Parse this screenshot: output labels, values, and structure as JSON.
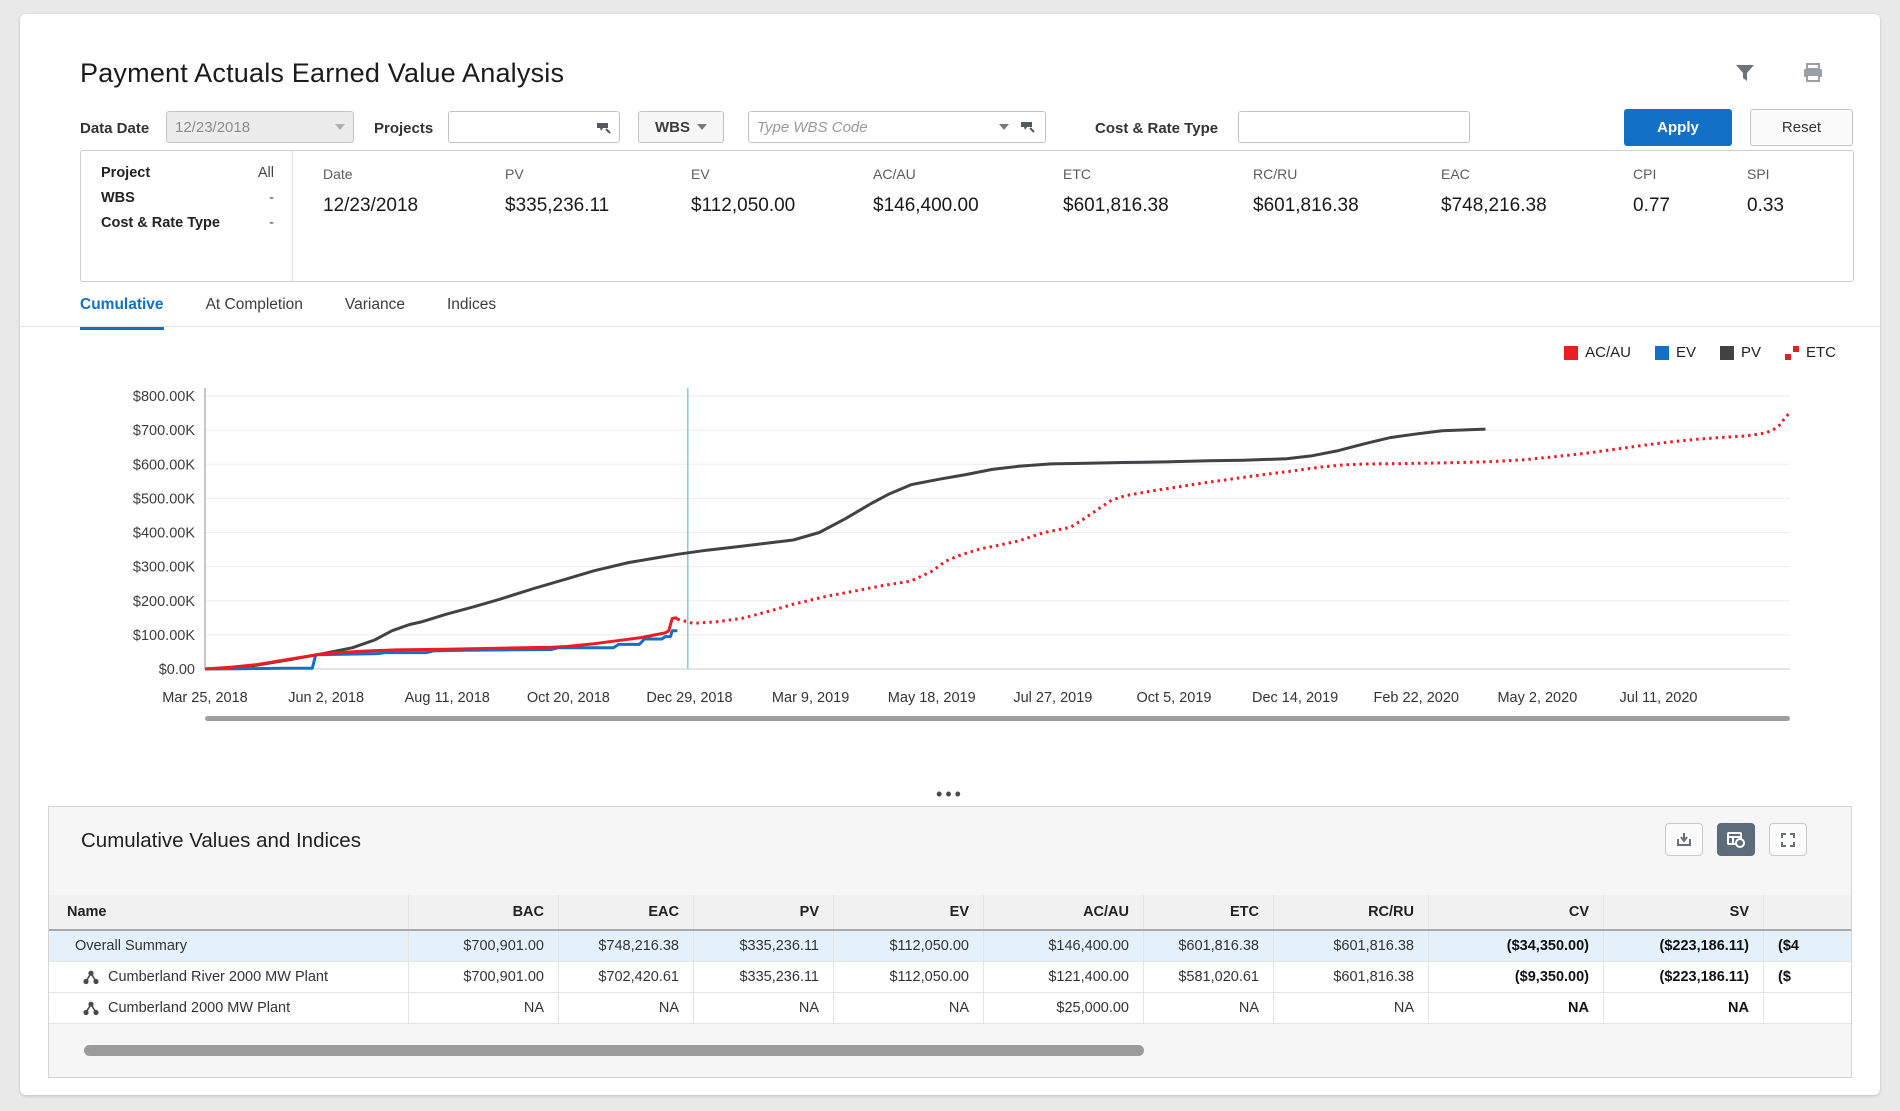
{
  "page": {
    "title": "Payment Actuals Earned Value Analysis"
  },
  "header_icons": {
    "filter": "filter-funnel",
    "print": "printer"
  },
  "filters": {
    "data_date": {
      "label": "Data Date",
      "value": "12/23/2018"
    },
    "projects": {
      "label": "Projects",
      "value": ""
    },
    "wbs": {
      "button_label": "WBS",
      "placeholder": "Type WBS Code"
    },
    "cost_rate_type": {
      "label": "Cost & Rate Type",
      "value": ""
    },
    "apply_label": "Apply",
    "reset_label": "Reset"
  },
  "summary": {
    "left": [
      {
        "label": "Project",
        "value": "All"
      },
      {
        "label": "WBS",
        "value": "-"
      },
      {
        "label": "Cost & Rate Type",
        "value": "-"
      }
    ],
    "metrics": [
      {
        "label": "Date",
        "value": "12/23/2018"
      },
      {
        "label": "PV",
        "value": "$335,236.11"
      },
      {
        "label": "EV",
        "value": "$112,050.00"
      },
      {
        "label": "AC/AU",
        "value": "$146,400.00"
      },
      {
        "label": "ETC",
        "value": "$601,816.38"
      },
      {
        "label": "RC/RU",
        "value": "$601,816.38"
      },
      {
        "label": "EAC",
        "value": "$748,216.38"
      },
      {
        "label": "CPI",
        "value": "0.77"
      },
      {
        "label": "SPI",
        "value": "0.33"
      }
    ]
  },
  "tabs": [
    {
      "label": "Cumulative",
      "active": true
    },
    {
      "label": "At Completion",
      "active": false
    },
    {
      "label": "Variance",
      "active": false
    },
    {
      "label": "Indices",
      "active": false
    }
  ],
  "legend": [
    {
      "label": "AC/AU",
      "color": "#ed1c24",
      "style": "solid"
    },
    {
      "label": "EV",
      "color": "#1271c4",
      "style": "solid"
    },
    {
      "label": "PV",
      "color": "#424245",
      "style": "solid"
    },
    {
      "label": "ETC",
      "color": "#ed1c24",
      "style": "dotted"
    }
  ],
  "chart_data": {
    "type": "line",
    "title": "",
    "xlabel": "",
    "ylabel": "",
    "units": "USD thousands",
    "x_unit": "days since Mar 25, 2018",
    "x_range": [
      0,
      916
    ],
    "ylim": [
      0,
      800
    ],
    "grid": true,
    "legend_position": "top-right",
    "y_ticks": [
      "$800.00K",
      "$700.00K",
      "$600.00K",
      "$500.00K",
      "$400.00K",
      "$300.00K",
      "$200.00K",
      "$100.00K",
      "$0.00"
    ],
    "y_tick_values": [
      800,
      700,
      600,
      500,
      400,
      300,
      200,
      100,
      0
    ],
    "x_labels": [
      {
        "label": "Mar 25, 2018",
        "day": 0
      },
      {
        "label": "Jun 2, 2018",
        "day": 70
      },
      {
        "label": "Aug 11, 2018",
        "day": 140
      },
      {
        "label": "Oct 20, 2018",
        "day": 210
      },
      {
        "label": "Dec 29, 2018",
        "day": 280
      },
      {
        "label": "Mar 9, 2019",
        "day": 350
      },
      {
        "label": "May 18, 2019",
        "day": 420
      },
      {
        "label": "Jul 27, 2019",
        "day": 490
      },
      {
        "label": "Oct 5, 2019",
        "day": 560
      },
      {
        "label": "Dec 14, 2019",
        "day": 630
      },
      {
        "label": "Feb 22, 2020",
        "day": 700
      },
      {
        "label": "May 2, 2020",
        "day": 770
      },
      {
        "label": "Jul 11, 2020",
        "day": 840
      }
    ],
    "data_date_line": {
      "day": 279,
      "color": "#8cc9e4"
    },
    "series": [
      {
        "name": "PV",
        "color": "#424245",
        "style": "solid",
        "points": [
          [
            0,
            0
          ],
          [
            14,
            4
          ],
          [
            30,
            11
          ],
          [
            50,
            28
          ],
          [
            69,
            46
          ],
          [
            85,
            62
          ],
          [
            98,
            85
          ],
          [
            108,
            112
          ],
          [
            118,
            130
          ],
          [
            125,
            138
          ],
          [
            139,
            160
          ],
          [
            155,
            182
          ],
          [
            170,
            204
          ],
          [
            190,
            236
          ],
          [
            209,
            264
          ],
          [
            225,
            288
          ],
          [
            245,
            312
          ],
          [
            260,
            325
          ],
          [
            273,
            336
          ],
          [
            290,
            348
          ],
          [
            310,
            360
          ],
          [
            340,
            378
          ],
          [
            355,
            400
          ],
          [
            370,
            440
          ],
          [
            385,
            485
          ],
          [
            395,
            512
          ],
          [
            408,
            540
          ],
          [
            424,
            556
          ],
          [
            440,
            570
          ],
          [
            455,
            585
          ],
          [
            470,
            594
          ],
          [
            489,
            601
          ],
          [
            510,
            603
          ],
          [
            530,
            605
          ],
          [
            555,
            607
          ],
          [
            580,
            610
          ],
          [
            600,
            612
          ],
          [
            625,
            616
          ],
          [
            640,
            625
          ],
          [
            655,
            640
          ],
          [
            670,
            660
          ],
          [
            685,
            678
          ],
          [
            699,
            688
          ],
          [
            715,
            698
          ],
          [
            740,
            703
          ]
        ]
      },
      {
        "name": "EV",
        "color": "#1271c4",
        "style": "solid",
        "points": [
          [
            0,
            0
          ],
          [
            20,
            1
          ],
          [
            45,
            2
          ],
          [
            62,
            2
          ],
          [
            64,
            42
          ],
          [
            80,
            43
          ],
          [
            100,
            45
          ],
          [
            104,
            48
          ],
          [
            128,
            48
          ],
          [
            132,
            53
          ],
          [
            150,
            55
          ],
          [
            200,
            57
          ],
          [
            204,
            62
          ],
          [
            236,
            62
          ],
          [
            239,
            72
          ],
          [
            251,
            72
          ],
          [
            254,
            88
          ],
          [
            264,
            88
          ],
          [
            266,
            95
          ],
          [
            269,
            95
          ],
          [
            270,
            112
          ],
          [
            273,
            112
          ]
        ]
      },
      {
        "name": "AC/AU",
        "color": "#ed1c24",
        "style": "solid",
        "points": [
          [
            0,
            0
          ],
          [
            15,
            5
          ],
          [
            30,
            13
          ],
          [
            50,
            30
          ],
          [
            69,
            45
          ],
          [
            90,
            52
          ],
          [
            110,
            56
          ],
          [
            139,
            58
          ],
          [
            170,
            61
          ],
          [
            200,
            64
          ],
          [
            209,
            66
          ],
          [
            225,
            74
          ],
          [
            240,
            84
          ],
          [
            252,
            92
          ],
          [
            260,
            100
          ],
          [
            266,
            106
          ],
          [
            268,
            112
          ],
          [
            270,
            148
          ],
          [
            272,
            150
          ],
          [
            273,
            146
          ]
        ]
      },
      {
        "name": "ETC",
        "color": "#ed1c24",
        "style": "dotted",
        "points": [
          [
            273,
            146
          ],
          [
            282,
            134
          ],
          [
            295,
            138
          ],
          [
            310,
            148
          ],
          [
            325,
            168
          ],
          [
            340,
            190
          ],
          [
            360,
            214
          ],
          [
            375,
            228
          ],
          [
            390,
            243
          ],
          [
            408,
            258
          ],
          [
            420,
            286
          ],
          [
            428,
            316
          ],
          [
            436,
            333
          ],
          [
            448,
            352
          ],
          [
            458,
            362
          ],
          [
            470,
            375
          ],
          [
            485,
            400
          ],
          [
            500,
            415
          ],
          [
            508,
            440
          ],
          [
            516,
            468
          ],
          [
            524,
            495
          ],
          [
            532,
            508
          ],
          [
            545,
            520
          ],
          [
            560,
            532
          ],
          [
            578,
            546
          ],
          [
            595,
            558
          ],
          [
            612,
            570
          ],
          [
            628,
            580
          ],
          [
            645,
            592
          ],
          [
            658,
            598
          ],
          [
            672,
            601
          ],
          [
            690,
            602
          ],
          [
            705,
            603
          ],
          [
            725,
            605
          ],
          [
            745,
            608
          ],
          [
            762,
            613
          ],
          [
            780,
            622
          ],
          [
            798,
            632
          ],
          [
            815,
            644
          ],
          [
            832,
            656
          ],
          [
            848,
            666
          ],
          [
            862,
            673
          ],
          [
            875,
            678
          ],
          [
            888,
            682
          ],
          [
            895,
            686
          ],
          [
            902,
            692
          ],
          [
            906,
            700
          ],
          [
            910,
            715
          ],
          [
            913,
            735
          ],
          [
            916,
            752
          ]
        ]
      }
    ]
  },
  "table": {
    "title": "Cumulative Values and Indices",
    "toolbar": {
      "icons": [
        "download",
        "table-settings",
        "expand"
      ]
    },
    "columns": [
      "Name",
      "BAC",
      "EAC",
      "PV",
      "EV",
      "AC/AU",
      "ETC",
      "RC/RU",
      "CV",
      "SV",
      ""
    ],
    "rows": [
      {
        "name": "Overall Summary",
        "selected": true,
        "values": [
          "$700,901.00",
          "$748,216.38",
          "$335,236.11",
          "$112,050.00",
          "$146,400.00",
          "$601,816.38",
          "$601,816.38",
          "($34,350.00)",
          "($223,186.11)",
          "($4"
        ]
      },
      {
        "name": "Cumberland River 2000 MW Plant",
        "selected": false,
        "values": [
          "$700,901.00",
          "$702,420.61",
          "$335,236.11",
          "$112,050.00",
          "$121,400.00",
          "$581,020.61",
          "$601,816.38",
          "($9,350.00)",
          "($223,186.11)",
          "($"
        ]
      },
      {
        "name": "Cumberland 2000 MW Plant",
        "selected": false,
        "values": [
          "NA",
          "NA",
          "NA",
          "NA",
          "$25,000.00",
          "NA",
          "NA",
          "NA",
          "NA",
          ""
        ]
      }
    ]
  }
}
